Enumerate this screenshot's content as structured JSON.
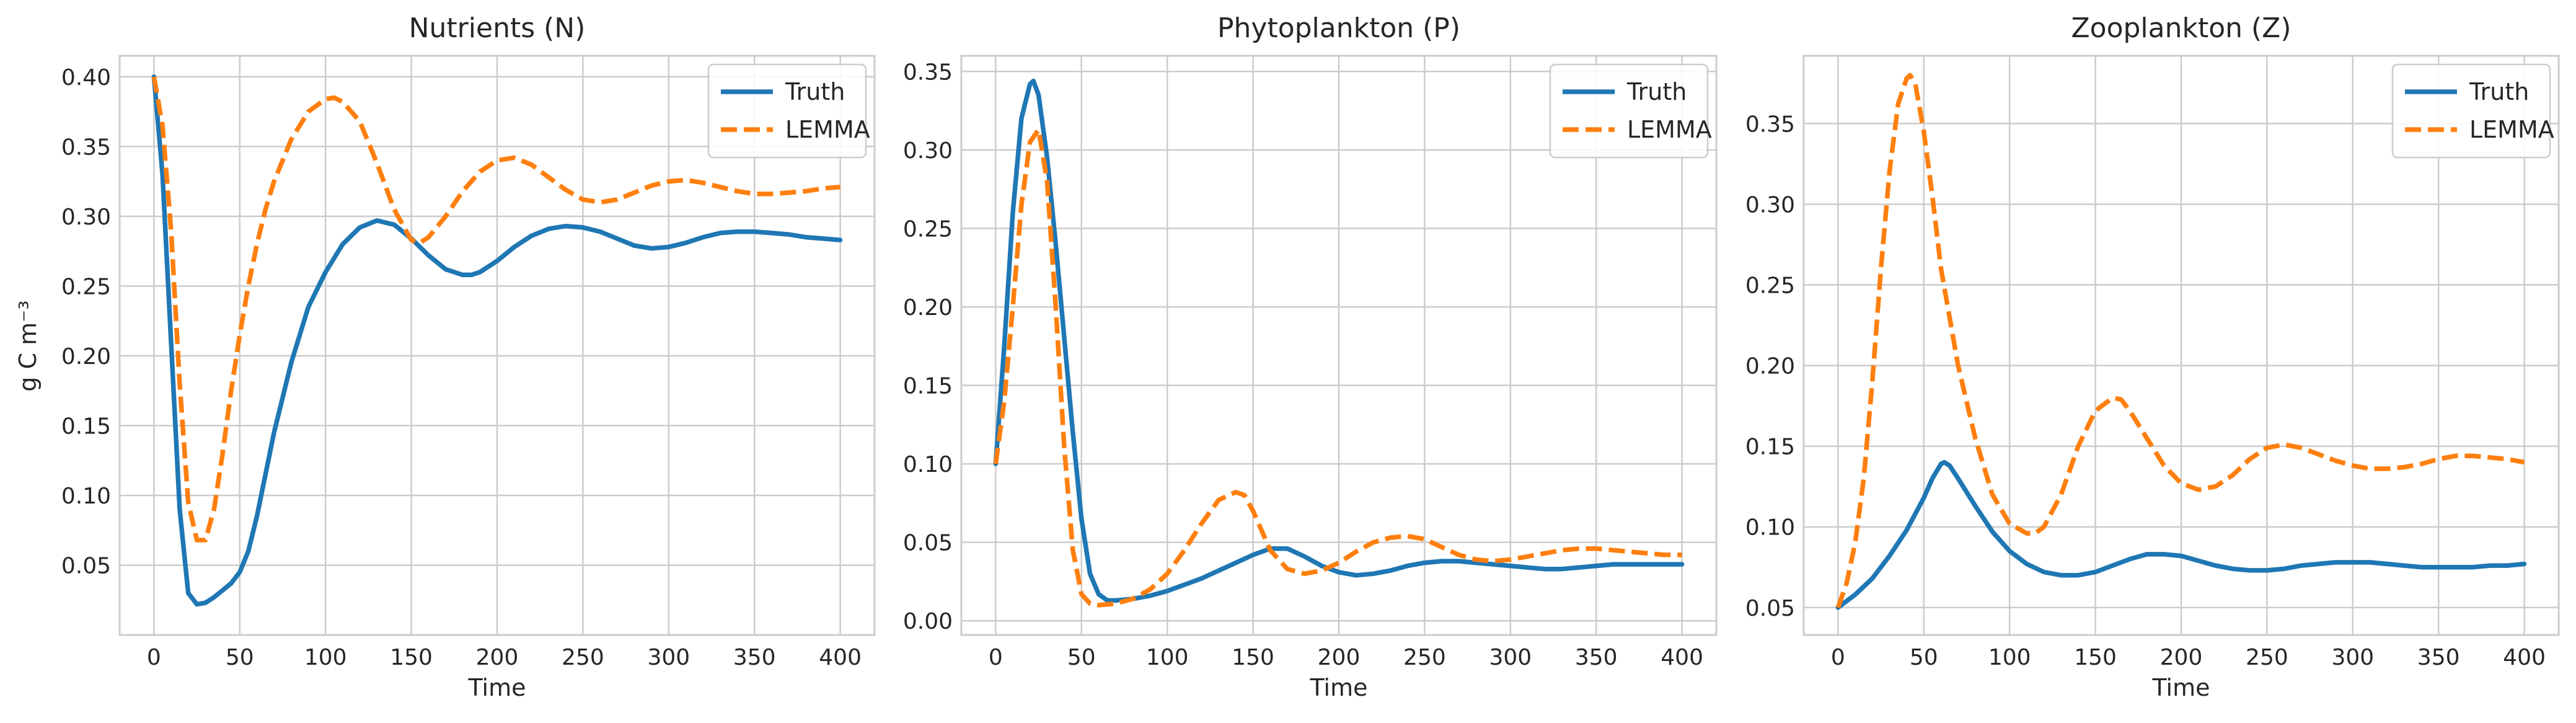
{
  "chart_data": [
    {
      "type": "line",
      "title": "Nutrients (N)",
      "xlabel": "Time",
      "ylabel": "g C m⁻³",
      "xlim": [
        -20,
        420
      ],
      "ylim": [
        0.0,
        0.415
      ],
      "xticks": [
        0,
        50,
        100,
        150,
        200,
        250,
        300,
        350,
        400
      ],
      "yticks": [
        0.05,
        0.1,
        0.15,
        0.2,
        0.25,
        0.3,
        0.35,
        0.4
      ],
      "ytick_decimals": 2,
      "grid": true,
      "legend_position": "top-right",
      "series": [
        {
          "name": "Truth",
          "color": "#1f77b4",
          "style": "solid",
          "x": [
            0,
            5,
            10,
            15,
            20,
            25,
            30,
            35,
            40,
            45,
            50,
            55,
            60,
            70,
            80,
            90,
            100,
            110,
            120,
            130,
            140,
            150,
            160,
            170,
            180,
            185,
            190,
            200,
            210,
            220,
            230,
            240,
            250,
            260,
            270,
            280,
            290,
            300,
            310,
            320,
            330,
            340,
            350,
            360,
            370,
            380,
            390,
            400
          ],
          "y": [
            0.4,
            0.33,
            0.21,
            0.09,
            0.03,
            0.022,
            0.023,
            0.027,
            0.032,
            0.037,
            0.045,
            0.06,
            0.085,
            0.145,
            0.195,
            0.235,
            0.26,
            0.28,
            0.292,
            0.297,
            0.294,
            0.284,
            0.272,
            0.262,
            0.258,
            0.258,
            0.26,
            0.268,
            0.278,
            0.286,
            0.291,
            0.293,
            0.292,
            0.289,
            0.284,
            0.279,
            0.277,
            0.278,
            0.281,
            0.285,
            0.288,
            0.289,
            0.289,
            0.288,
            0.287,
            0.285,
            0.284,
            0.283
          ]
        },
        {
          "name": "LEMMA",
          "color": "#ff7f0e",
          "style": "dashed",
          "x": [
            0,
            5,
            10,
            15,
            20,
            25,
            30,
            35,
            40,
            45,
            50,
            55,
            60,
            65,
            70,
            80,
            90,
            100,
            105,
            110,
            120,
            130,
            140,
            150,
            155,
            160,
            170,
            180,
            190,
            200,
            210,
            220,
            230,
            240,
            250,
            260,
            270,
            280,
            290,
            300,
            310,
            320,
            330,
            340,
            350,
            360,
            370,
            380,
            390,
            400
          ],
          "y": [
            0.4,
            0.365,
            0.29,
            0.18,
            0.095,
            0.068,
            0.068,
            0.09,
            0.13,
            0.175,
            0.215,
            0.25,
            0.28,
            0.305,
            0.325,
            0.355,
            0.375,
            0.384,
            0.385,
            0.382,
            0.368,
            0.338,
            0.305,
            0.283,
            0.281,
            0.285,
            0.3,
            0.318,
            0.332,
            0.34,
            0.342,
            0.337,
            0.328,
            0.319,
            0.312,
            0.31,
            0.312,
            0.317,
            0.322,
            0.325,
            0.326,
            0.324,
            0.321,
            0.318,
            0.316,
            0.316,
            0.317,
            0.318,
            0.32,
            0.321
          ]
        }
      ]
    },
    {
      "type": "line",
      "title": "Phytoplankton (P)",
      "xlabel": "Time",
      "ylabel": "",
      "xlim": [
        -20,
        420
      ],
      "ylim": [
        -0.009,
        0.36
      ],
      "xticks": [
        0,
        50,
        100,
        150,
        200,
        250,
        300,
        350,
        400
      ],
      "yticks": [
        0.0,
        0.05,
        0.1,
        0.15,
        0.2,
        0.25,
        0.3,
        0.35
      ],
      "ytick_decimals": 2,
      "grid": true,
      "legend_position": "top-right",
      "series": [
        {
          "name": "Truth",
          "color": "#1f77b4",
          "style": "solid",
          "x": [
            0,
            5,
            10,
            15,
            20,
            22,
            25,
            30,
            35,
            40,
            45,
            50,
            55,
            60,
            65,
            70,
            80,
            90,
            100,
            110,
            120,
            130,
            140,
            150,
            160,
            170,
            180,
            190,
            200,
            210,
            220,
            230,
            240,
            250,
            260,
            270,
            280,
            290,
            300,
            310,
            320,
            330,
            340,
            350,
            360,
            370,
            380,
            390,
            400
          ],
          "y": [
            0.1,
            0.175,
            0.26,
            0.32,
            0.342,
            0.344,
            0.335,
            0.295,
            0.24,
            0.18,
            0.12,
            0.065,
            0.03,
            0.017,
            0.013,
            0.013,
            0.014,
            0.016,
            0.019,
            0.023,
            0.027,
            0.032,
            0.037,
            0.042,
            0.046,
            0.046,
            0.041,
            0.035,
            0.031,
            0.029,
            0.03,
            0.032,
            0.035,
            0.037,
            0.038,
            0.038,
            0.037,
            0.036,
            0.035,
            0.034,
            0.033,
            0.033,
            0.034,
            0.035,
            0.036,
            0.036,
            0.036,
            0.036,
            0.036
          ]
        },
        {
          "name": "LEMMA",
          "color": "#ff7f0e",
          "style": "dashed",
          "x": [
            0,
            5,
            10,
            15,
            20,
            25,
            30,
            35,
            40,
            45,
            50,
            55,
            60,
            70,
            80,
            90,
            100,
            110,
            120,
            130,
            140,
            145,
            150,
            160,
            170,
            180,
            190,
            200,
            210,
            220,
            230,
            240,
            250,
            260,
            270,
            280,
            290,
            300,
            310,
            320,
            330,
            340,
            350,
            360,
            370,
            380,
            390,
            400
          ],
          "y": [
            0.1,
            0.14,
            0.2,
            0.265,
            0.305,
            0.313,
            0.28,
            0.2,
            0.11,
            0.045,
            0.017,
            0.011,
            0.01,
            0.011,
            0.014,
            0.02,
            0.03,
            0.045,
            0.062,
            0.077,
            0.082,
            0.08,
            0.07,
            0.045,
            0.033,
            0.03,
            0.032,
            0.037,
            0.044,
            0.05,
            0.053,
            0.054,
            0.052,
            0.047,
            0.042,
            0.039,
            0.038,
            0.039,
            0.041,
            0.043,
            0.045,
            0.046,
            0.046,
            0.045,
            0.044,
            0.043,
            0.042,
            0.042
          ]
        }
      ]
    },
    {
      "type": "line",
      "title": "Zooplankton (Z)",
      "xlabel": "Time",
      "ylabel": "",
      "xlim": [
        -20,
        420
      ],
      "ylim": [
        0.033,
        0.392
      ],
      "xticks": [
        0,
        50,
        100,
        150,
        200,
        250,
        300,
        350,
        400
      ],
      "yticks": [
        0.05,
        0.1,
        0.15,
        0.2,
        0.25,
        0.3,
        0.35
      ],
      "ytick_decimals": 2,
      "grid": true,
      "legend_position": "top-right",
      "series": [
        {
          "name": "Truth",
          "color": "#1f77b4",
          "style": "solid",
          "x": [
            0,
            10,
            20,
            30,
            40,
            50,
            55,
            60,
            62,
            65,
            70,
            80,
            90,
            100,
            110,
            120,
            130,
            140,
            150,
            160,
            170,
            180,
            190,
            200,
            210,
            220,
            230,
            240,
            250,
            260,
            270,
            280,
            290,
            300,
            310,
            320,
            330,
            340,
            350,
            360,
            370,
            380,
            390,
            400
          ],
          "y": [
            0.05,
            0.058,
            0.068,
            0.082,
            0.098,
            0.118,
            0.13,
            0.139,
            0.14,
            0.138,
            0.13,
            0.113,
            0.097,
            0.085,
            0.077,
            0.072,
            0.07,
            0.07,
            0.072,
            0.076,
            0.08,
            0.083,
            0.083,
            0.082,
            0.079,
            0.076,
            0.074,
            0.073,
            0.073,
            0.074,
            0.076,
            0.077,
            0.078,
            0.078,
            0.078,
            0.077,
            0.076,
            0.075,
            0.075,
            0.075,
            0.075,
            0.076,
            0.076,
            0.077
          ]
        },
        {
          "name": "LEMMA",
          "color": "#ff7f0e",
          "style": "dashed",
          "x": [
            0,
            5,
            10,
            15,
            20,
            25,
            30,
            35,
            40,
            42,
            45,
            50,
            55,
            60,
            70,
            80,
            90,
            100,
            110,
            115,
            120,
            130,
            140,
            150,
            160,
            165,
            170,
            180,
            190,
            200,
            210,
            220,
            230,
            240,
            250,
            260,
            270,
            280,
            290,
            300,
            310,
            320,
            330,
            340,
            350,
            360,
            370,
            380,
            390,
            400
          ],
          "y": [
            0.05,
            0.065,
            0.09,
            0.13,
            0.19,
            0.26,
            0.32,
            0.362,
            0.378,
            0.38,
            0.375,
            0.345,
            0.305,
            0.26,
            0.2,
            0.155,
            0.12,
            0.102,
            0.096,
            0.096,
            0.1,
            0.12,
            0.15,
            0.172,
            0.18,
            0.179,
            0.172,
            0.155,
            0.138,
            0.127,
            0.123,
            0.125,
            0.132,
            0.142,
            0.149,
            0.151,
            0.149,
            0.145,
            0.141,
            0.138,
            0.136,
            0.136,
            0.137,
            0.139,
            0.142,
            0.144,
            0.144,
            0.143,
            0.142,
            0.14
          ]
        }
      ]
    }
  ]
}
